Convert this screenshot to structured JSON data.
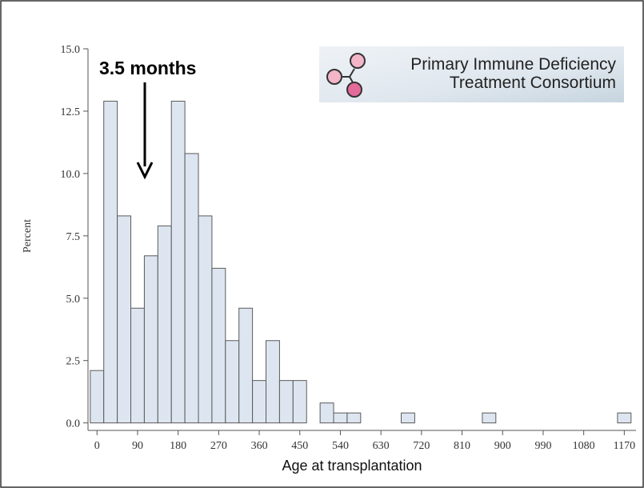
{
  "chart_data": {
    "type": "histogram",
    "annotation": "3.5 months",
    "logo_text": [
      "Primary Immune Deficiency",
      "Treatment Consortium"
    ],
    "xlabel": "Age at transplantation",
    "ylabel": "Percent",
    "bins": [
      -15,
      15,
      45,
      75,
      105,
      135,
      165,
      195,
      225,
      255,
      285,
      315,
      345,
      375,
      405,
      435,
      465,
      495,
      525,
      555,
      585,
      615,
      645,
      675,
      705,
      735,
      765,
      795,
      825,
      855,
      885,
      915,
      945,
      975,
      1005,
      1035,
      1065,
      1095,
      1125,
      1155,
      1185
    ],
    "values": [
      2.1,
      12.9,
      8.3,
      4.6,
      6.7,
      7.9,
      12.9,
      10.8,
      8.3,
      6.2,
      3.3,
      4.6,
      1.7,
      3.3,
      1.7,
      1.7,
      0,
      0.8,
      0.4,
      0.4,
      0,
      0,
      0,
      0.4,
      0,
      0,
      0,
      0,
      0,
      0.4,
      0,
      0,
      0,
      0,
      0,
      0,
      0,
      0,
      0,
      0.4
    ],
    "color": "#dde6f0",
    "xlim": [
      -20,
      1196
    ],
    "ylim": [
      -0.3,
      15.0
    ],
    "xticks": [
      0,
      90,
      180,
      270,
      360,
      450,
      540,
      630,
      720,
      810,
      900,
      990,
      1080,
      1170
    ],
    "yticks": [
      {
        "value": 0,
        "label": "0.0"
      },
      2.5,
      {
        "value": 5,
        "label": "5.0"
      },
      7.5,
      {
        "value": 10,
        "label": "10.0"
      },
      12.5,
      {
        "value": 15,
        "label": "15.0"
      }
    ]
  }
}
